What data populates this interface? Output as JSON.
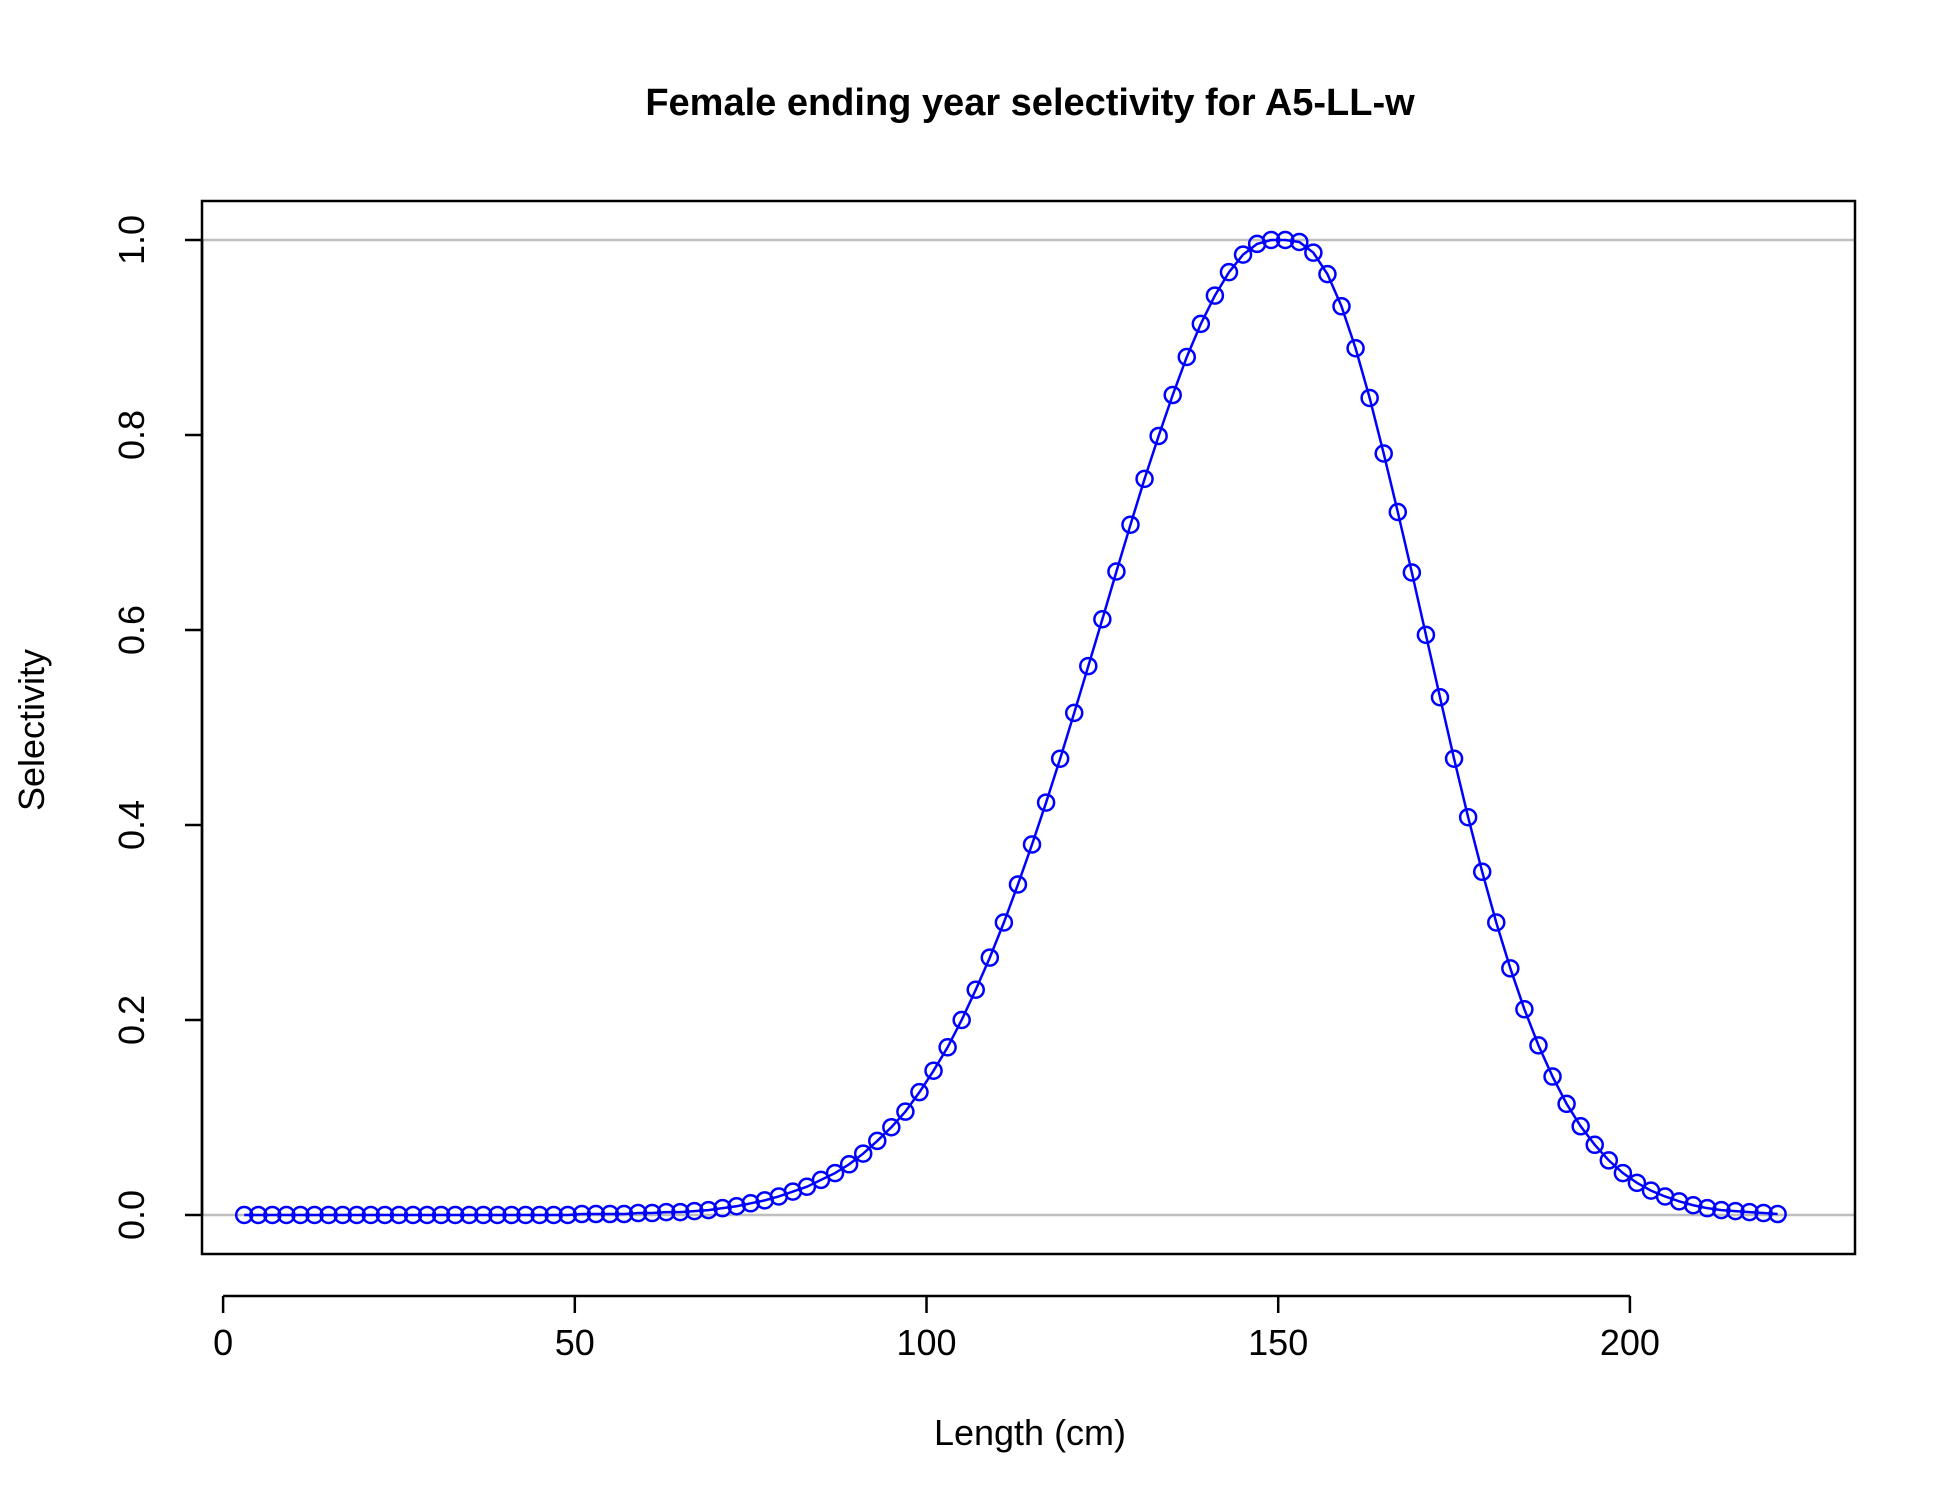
{
  "chart_data": {
    "type": "line",
    "title": "Female ending year selectivity for A5-LL-w",
    "xlabel": "Length (cm)",
    "ylabel": "Selectivity",
    "xlim": [
      -3,
      232
    ],
    "ylim": [
      -0.04,
      1.04
    ],
    "xticks": [
      0,
      50,
      100,
      150,
      200
    ],
    "yticks": [
      0.0,
      0.2,
      0.4,
      0.6,
      0.8,
      1.0
    ],
    "ytick_labels": [
      "0.0",
      "0.2",
      "0.4",
      "0.6",
      "0.8",
      "1.0"
    ],
    "reference_lines_y": [
      0,
      1
    ],
    "reference_line_color": "#bebebe",
    "series_color": "#0000ff",
    "marker": "open-circle",
    "series": [
      {
        "x": [
          3,
          5,
          7,
          9,
          11,
          13,
          15,
          17,
          19,
          21,
          23,
          25,
          27,
          29,
          31,
          33,
          35,
          37,
          39,
          41,
          43,
          45,
          47,
          49,
          51,
          53,
          55,
          57,
          59,
          61,
          63,
          65,
          67,
          69,
          71,
          73,
          75,
          77,
          79,
          81,
          83,
          85,
          87,
          89,
          91,
          93,
          95,
          97,
          99,
          101,
          103,
          105,
          107,
          109,
          111,
          113,
          115,
          117,
          119,
          121,
          123,
          125,
          127,
          129,
          131,
          133,
          135,
          137,
          139,
          141,
          143,
          145,
          147,
          149,
          151,
          153,
          155,
          157,
          159,
          161,
          163,
          165,
          167,
          169,
          171,
          173,
          175,
          177,
          179,
          181,
          183,
          185,
          187,
          189,
          191,
          193,
          195,
          197,
          199,
          201,
          203,
          205,
          207,
          209,
          211,
          213,
          215,
          217,
          219,
          221
        ],
        "y": [
          0.0,
          0.0,
          0.0,
          0.0,
          0.0,
          0.0,
          0.0,
          0.0,
          0.0,
          0.0,
          0.0,
          0.0,
          0.0,
          0.0,
          0.0,
          0.0,
          0.0,
          0.0,
          0.0,
          0.0,
          0.0,
          0.0,
          0.0,
          0.0,
          0.001,
          0.001,
          0.001,
          0.001,
          0.002,
          0.002,
          0.003,
          0.003,
          0.004,
          0.005,
          0.007,
          0.009,
          0.012,
          0.015,
          0.019,
          0.024,
          0.029,
          0.036,
          0.043,
          0.052,
          0.063,
          0.076,
          0.09,
          0.106,
          0.126,
          0.148,
          0.172,
          0.2,
          0.231,
          0.264,
          0.3,
          0.339,
          0.38,
          0.423,
          0.468,
          0.515,
          0.563,
          0.611,
          0.66,
          0.708,
          0.755,
          0.799,
          0.841,
          0.88,
          0.914,
          0.943,
          0.967,
          0.985,
          0.996,
          1.0,
          1.0,
          0.998,
          0.987,
          0.965,
          0.932,
          0.889,
          0.838,
          0.781,
          0.721,
          0.659,
          0.595,
          0.531,
          0.468,
          0.408,
          0.352,
          0.3,
          0.253,
          0.211,
          0.174,
          0.142,
          0.114,
          0.091,
          0.072,
          0.056,
          0.043,
          0.033,
          0.025,
          0.019,
          0.014,
          0.01,
          0.007,
          0.005,
          0.004,
          0.003,
          0.002,
          0.001
        ]
      }
    ]
  }
}
